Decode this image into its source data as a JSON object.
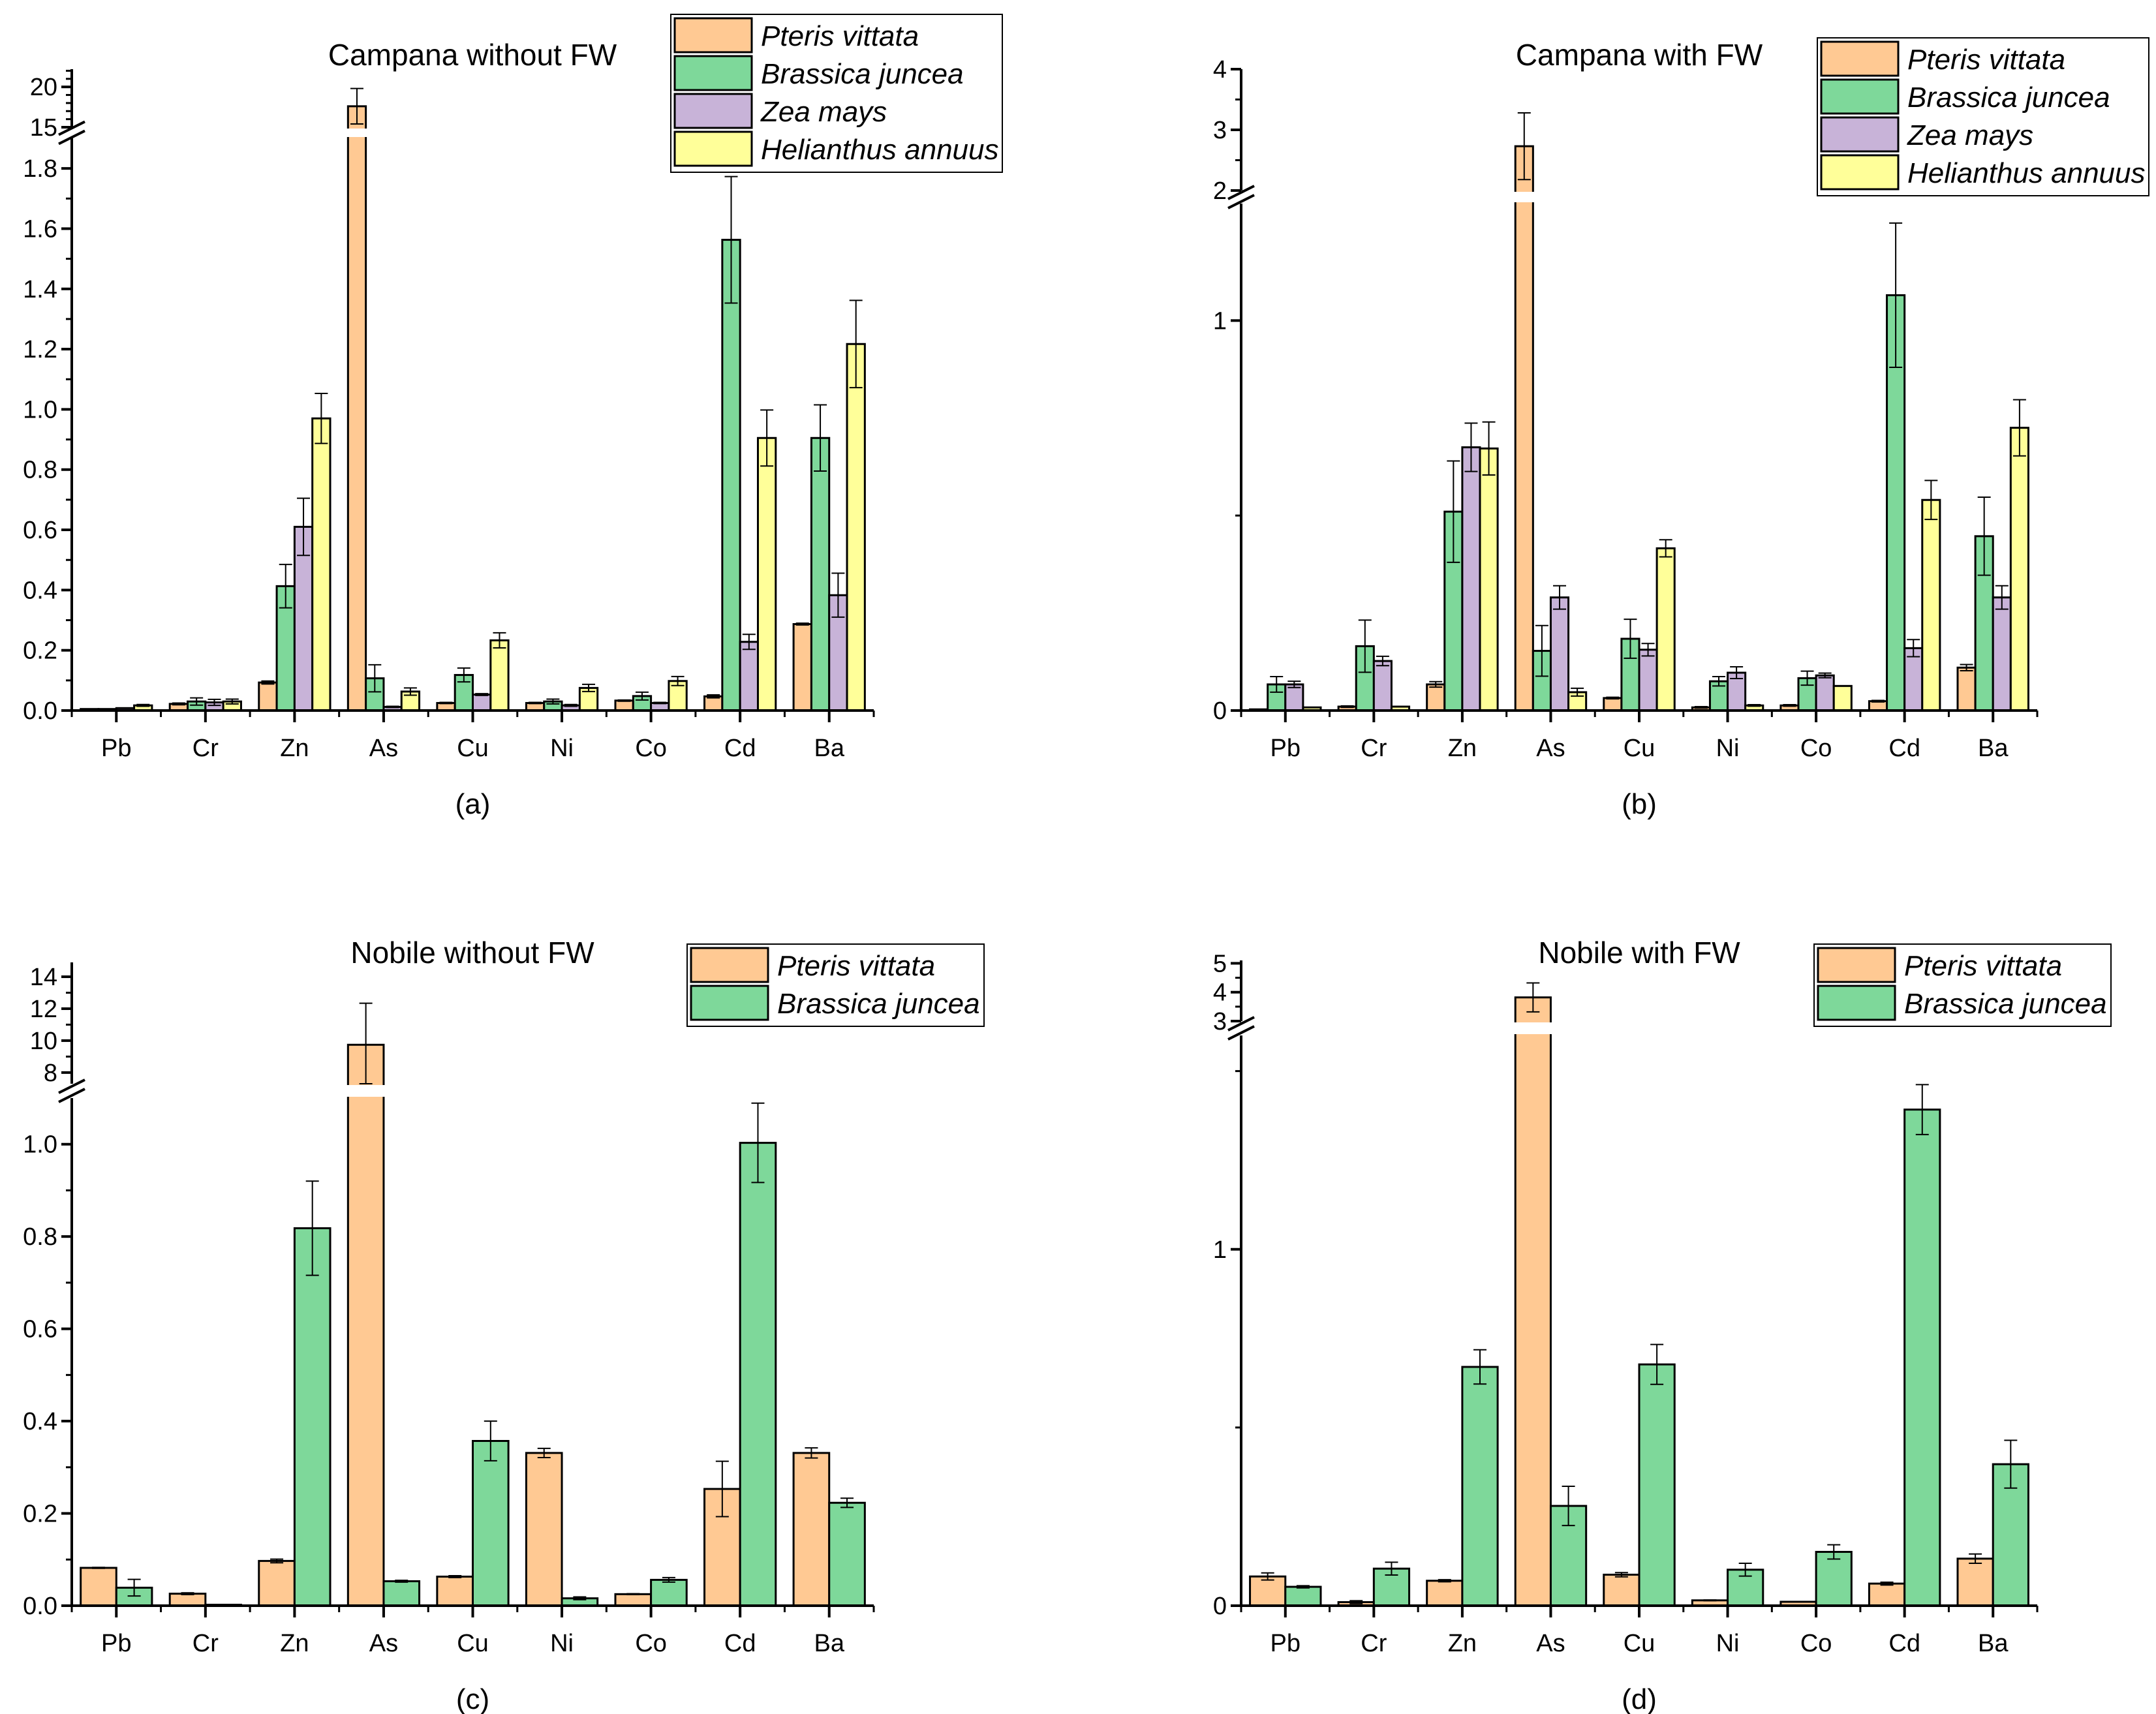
{
  "chart_data": [
    {
      "type": "bar",
      "panel_label": "(a)",
      "title": "Campana without FW",
      "xlabel": "",
      "ylabel": "",
      "categories": [
        "Pb",
        "Cr",
        "Zn",
        "As",
        "Cu",
        "Ni",
        "Co",
        "Cd",
        "Ba"
      ],
      "y_break": {
        "lower": [
          0,
          1.9
        ],
        "upper": [
          15,
          22.2
        ]
      },
      "ticks_lower": [
        "0.0",
        "0.2",
        "0.4",
        "0.6",
        "0.8",
        "1.0",
        "1.2",
        "1.4",
        "1.6",
        "1.8"
      ],
      "ticks_upper": [
        "15",
        "20"
      ],
      "legend_position": "top-right",
      "series": [
        {
          "name": "Pteris vittata",
          "color": "#FFC993",
          "values": [
            0.005,
            0.022,
            0.093,
            17.6,
            0.025,
            0.025,
            0.033,
            0.047,
            0.287
          ],
          "errors": [
            0,
            0.003,
            0.005,
            2.2,
            0.002,
            0.002,
            0.002,
            0.005,
            0.003
          ]
        },
        {
          "name": "Brassica juncea",
          "color": "#7ED89A",
          "values": [
            0.005,
            0.03,
            0.413,
            0.107,
            0.118,
            0.03,
            0.048,
            1.563,
            0.905
          ],
          "errors": [
            0,
            0.012,
            0.072,
            0.045,
            0.023,
            0.008,
            0.013,
            0.21,
            0.11
          ]
        },
        {
          "name": "Zea mays",
          "color": "#C8B3D8",
          "values": [
            0.008,
            0.027,
            0.61,
            0.012,
            0.053,
            0.017,
            0.025,
            0.228,
            0.383
          ],
          "errors": [
            0,
            0.01,
            0.095,
            0.002,
            0.003,
            0.003,
            0.002,
            0.025,
            0.073
          ]
        },
        {
          "name": "Helianthus annuus",
          "color": "#FFFF99",
          "values": [
            0.017,
            0.03,
            0.97,
            0.063,
            0.233,
            0.075,
            0.098,
            0.905,
            1.217
          ],
          "errors": [
            0.003,
            0.008,
            0.083,
            0.012,
            0.025,
            0.012,
            0.015,
            0.093,
            0.145
          ]
        }
      ]
    },
    {
      "type": "bar",
      "panel_label": "(b)",
      "title": "Campana with FW",
      "xlabel": "",
      "ylabel": "",
      "categories": [
        "Pb",
        "Cr",
        "Zn",
        "As",
        "Cu",
        "Ni",
        "Co",
        "Cd",
        "Ba"
      ],
      "y_break": {
        "lower": [
          0,
          1.3
        ],
        "upper": [
          2,
          4
        ]
      },
      "ticks_lower": [
        "0",
        "1"
      ],
      "ticks_upper": [
        "2",
        "3",
        "4"
      ],
      "legend_position": "top-right",
      "series": [
        {
          "name": "Pteris vittata",
          "color": "#FFC993",
          "values": [
            0.003,
            0.01,
            0.067,
            2.73,
            0.032,
            0.008,
            0.013,
            0.024,
            0.11
          ],
          "errors": [
            0,
            0.002,
            0.007,
            0.55,
            0.002,
            0.002,
            0.002,
            0.002,
            0.008
          ]
        },
        {
          "name": "Brassica juncea",
          "color": "#7ED89A",
          "values": [
            0.067,
            0.165,
            0.51,
            0.153,
            0.184,
            0.075,
            0.083,
            1.065,
            0.447
          ],
          "errors": [
            0.02,
            0.067,
            0.13,
            0.065,
            0.05,
            0.012,
            0.018,
            0.185,
            0.1
          ]
        },
        {
          "name": "Zea mays",
          "color": "#C8B3D8",
          "values": [
            0.067,
            0.127,
            0.675,
            0.29,
            0.156,
            0.097,
            0.09,
            0.16,
            0.29
          ],
          "errors": [
            0.008,
            0.012,
            0.062,
            0.03,
            0.016,
            0.015,
            0.006,
            0.022,
            0.03
          ]
        },
        {
          "name": "Helianthus annuus",
          "color": "#FFFF99",
          "values": [
            0.008,
            0.01,
            0.672,
            0.047,
            0.416,
            0.013,
            0.063,
            0.54,
            0.725
          ],
          "errors": [
            0,
            0,
            0.068,
            0.01,
            0.022,
            0.002,
            0,
            0.05,
            0.072
          ]
        }
      ]
    },
    {
      "type": "bar",
      "panel_label": "(c)",
      "title": "Nobile without FW",
      "xlabel": "",
      "ylabel": "",
      "categories": [
        "Pb",
        "Cr",
        "Zn",
        "As",
        "Cu",
        "Ni",
        "Co",
        "Cd",
        "Ba"
      ],
      "y_break": {
        "lower": [
          0,
          1.1
        ],
        "upper": [
          7.3,
          14.9
        ]
      },
      "ticks_lower": [
        "0.0",
        "0.2",
        "0.4",
        "0.6",
        "0.8",
        "1.0"
      ],
      "ticks_upper": [
        "8",
        "10",
        "12",
        "14"
      ],
      "legend_position": "top-right",
      "series": [
        {
          "name": "Pteris vittata",
          "color": "#FFC993",
          "values": [
            0.082,
            0.026,
            0.097,
            9.74,
            0.063,
            0.331,
            0.025,
            0.253,
            0.331
          ],
          "errors": [
            0.001,
            0.002,
            0.004,
            2.6,
            0.002,
            0.01,
            0.001,
            0.06,
            0.011
          ]
        },
        {
          "name": "Brassica juncea",
          "color": "#7ED89A",
          "values": [
            0.039,
            0.002,
            0.818,
            0.053,
            0.357,
            0.016,
            0.056,
            1.003,
            0.223
          ],
          "errors": [
            0.018,
            0,
            0.102,
            0.002,
            0.043,
            0.003,
            0.005,
            0.086,
            0.01
          ]
        }
      ]
    },
    {
      "type": "bar",
      "panel_label": "(d)",
      "title": "Nobile with FW",
      "xlabel": "",
      "ylabel": "",
      "categories": [
        "Pb",
        "Cr",
        "Zn",
        "As",
        "Cu",
        "Ni",
        "Co",
        "Cd",
        "Ba"
      ],
      "y_break": {
        "lower": [
          0,
          1.6
        ],
        "upper": [
          3,
          5.1
        ]
      },
      "ticks_lower": [
        "0",
        "1"
      ],
      "ticks_upper": [
        "3",
        "4",
        "5"
      ],
      "legend_position": "top-right",
      "series": [
        {
          "name": "Pteris vittata",
          "color": "#FFC993",
          "values": [
            0.082,
            0.01,
            0.07,
            3.82,
            0.087,
            0.015,
            0.011,
            0.062,
            0.132
          ],
          "errors": [
            0.01,
            0.004,
            0.003,
            0.5,
            0.006,
            0.001,
            0,
            0.004,
            0.013
          ]
        },
        {
          "name": "Brassica juncea",
          "color": "#7ED89A",
          "values": [
            0.053,
            0.104,
            0.67,
            0.28,
            0.677,
            0.101,
            0.151,
            1.392,
            0.397
          ],
          "errors": [
            0.003,
            0.018,
            0.048,
            0.055,
            0.056,
            0.018,
            0.02,
            0.07,
            0.067
          ]
        }
      ]
    }
  ]
}
